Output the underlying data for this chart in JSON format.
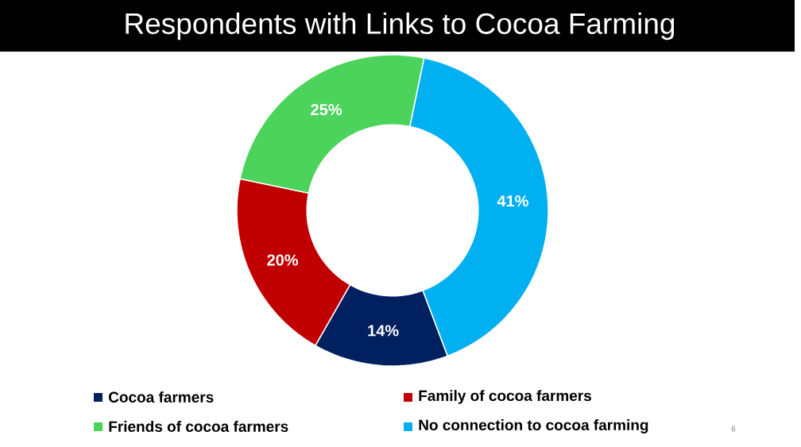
{
  "chart_data": {
    "type": "donut",
    "title": "Respondents with Links to Cocoa Farming",
    "categories": [
      "Cocoa farmers",
      "Family of cocoa farmers",
      "Friends of cocoa farmers",
      "No connection to cocoa farming"
    ],
    "values": [
      14,
      20,
      25,
      41
    ],
    "colors": [
      "#002060",
      "#c00000",
      "#4cd35c",
      "#00b0f0"
    ],
    "value_labels": [
      "14%",
      "20%",
      "25%",
      "41%"
    ],
    "legend": "bottom",
    "annotations": [
      "6"
    ]
  }
}
